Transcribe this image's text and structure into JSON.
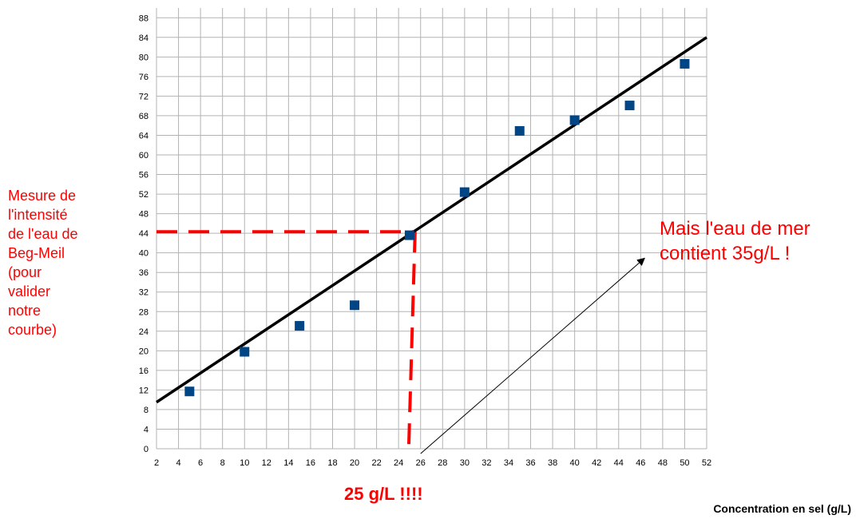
{
  "chart_data": {
    "type": "scatter",
    "xlabel": "Concentration en sel (g/L)",
    "ylabel_lines": [
      "Mesure de",
      "l'intensité",
      "de l'eau de",
      "Beg-Meil",
      "(pour",
      "valider",
      "notre",
      "courbe)"
    ],
    "xlim": [
      2,
      52
    ],
    "ylim": [
      0,
      90
    ],
    "x_ticks": [
      2,
      4,
      6,
      8,
      10,
      12,
      14,
      16,
      18,
      20,
      22,
      24,
      26,
      28,
      30,
      32,
      34,
      36,
      38,
      40,
      42,
      44,
      46,
      48,
      50,
      52
    ],
    "y_ticks": [
      0,
      4,
      8,
      12,
      16,
      20,
      24,
      28,
      32,
      36,
      40,
      44,
      48,
      52,
      56,
      60,
      64,
      68,
      72,
      76,
      80,
      84,
      88
    ],
    "grid": true,
    "series": [
      {
        "marker": "square",
        "color": "#004586",
        "x": [
          5,
          10,
          15,
          20,
          25,
          30,
          35,
          40,
          45,
          50
        ],
        "y": [
          11.7,
          19.8,
          25.1,
          29.3,
          43.6,
          52.4,
          64.9,
          67.1,
          70.1,
          78.6
        ]
      }
    ],
    "trendline": {
      "color": "#000000",
      "x": [
        2,
        52
      ],
      "y": [
        9.5,
        84
      ]
    },
    "reference_lines": {
      "color": "#ff0000",
      "horizontal": {
        "y": 44.3,
        "x_from": 2,
        "x_to": 25.5
      },
      "vertical": {
        "x": 25.5,
        "y_from": 44.3,
        "y_to": 0
      }
    },
    "annotations": [
      {
        "text_lines": [
          "Mais l'eau de mer",
          "contient 35g/L !"
        ],
        "color": "#ff0000"
      },
      {
        "text": "25 g/L !!!!",
        "color": "#ff0000",
        "bold": true
      }
    ],
    "arrow": {
      "color": "#000000",
      "from": [
        26,
        -1
      ],
      "to": [
        46.3,
        38.8
      ]
    }
  }
}
